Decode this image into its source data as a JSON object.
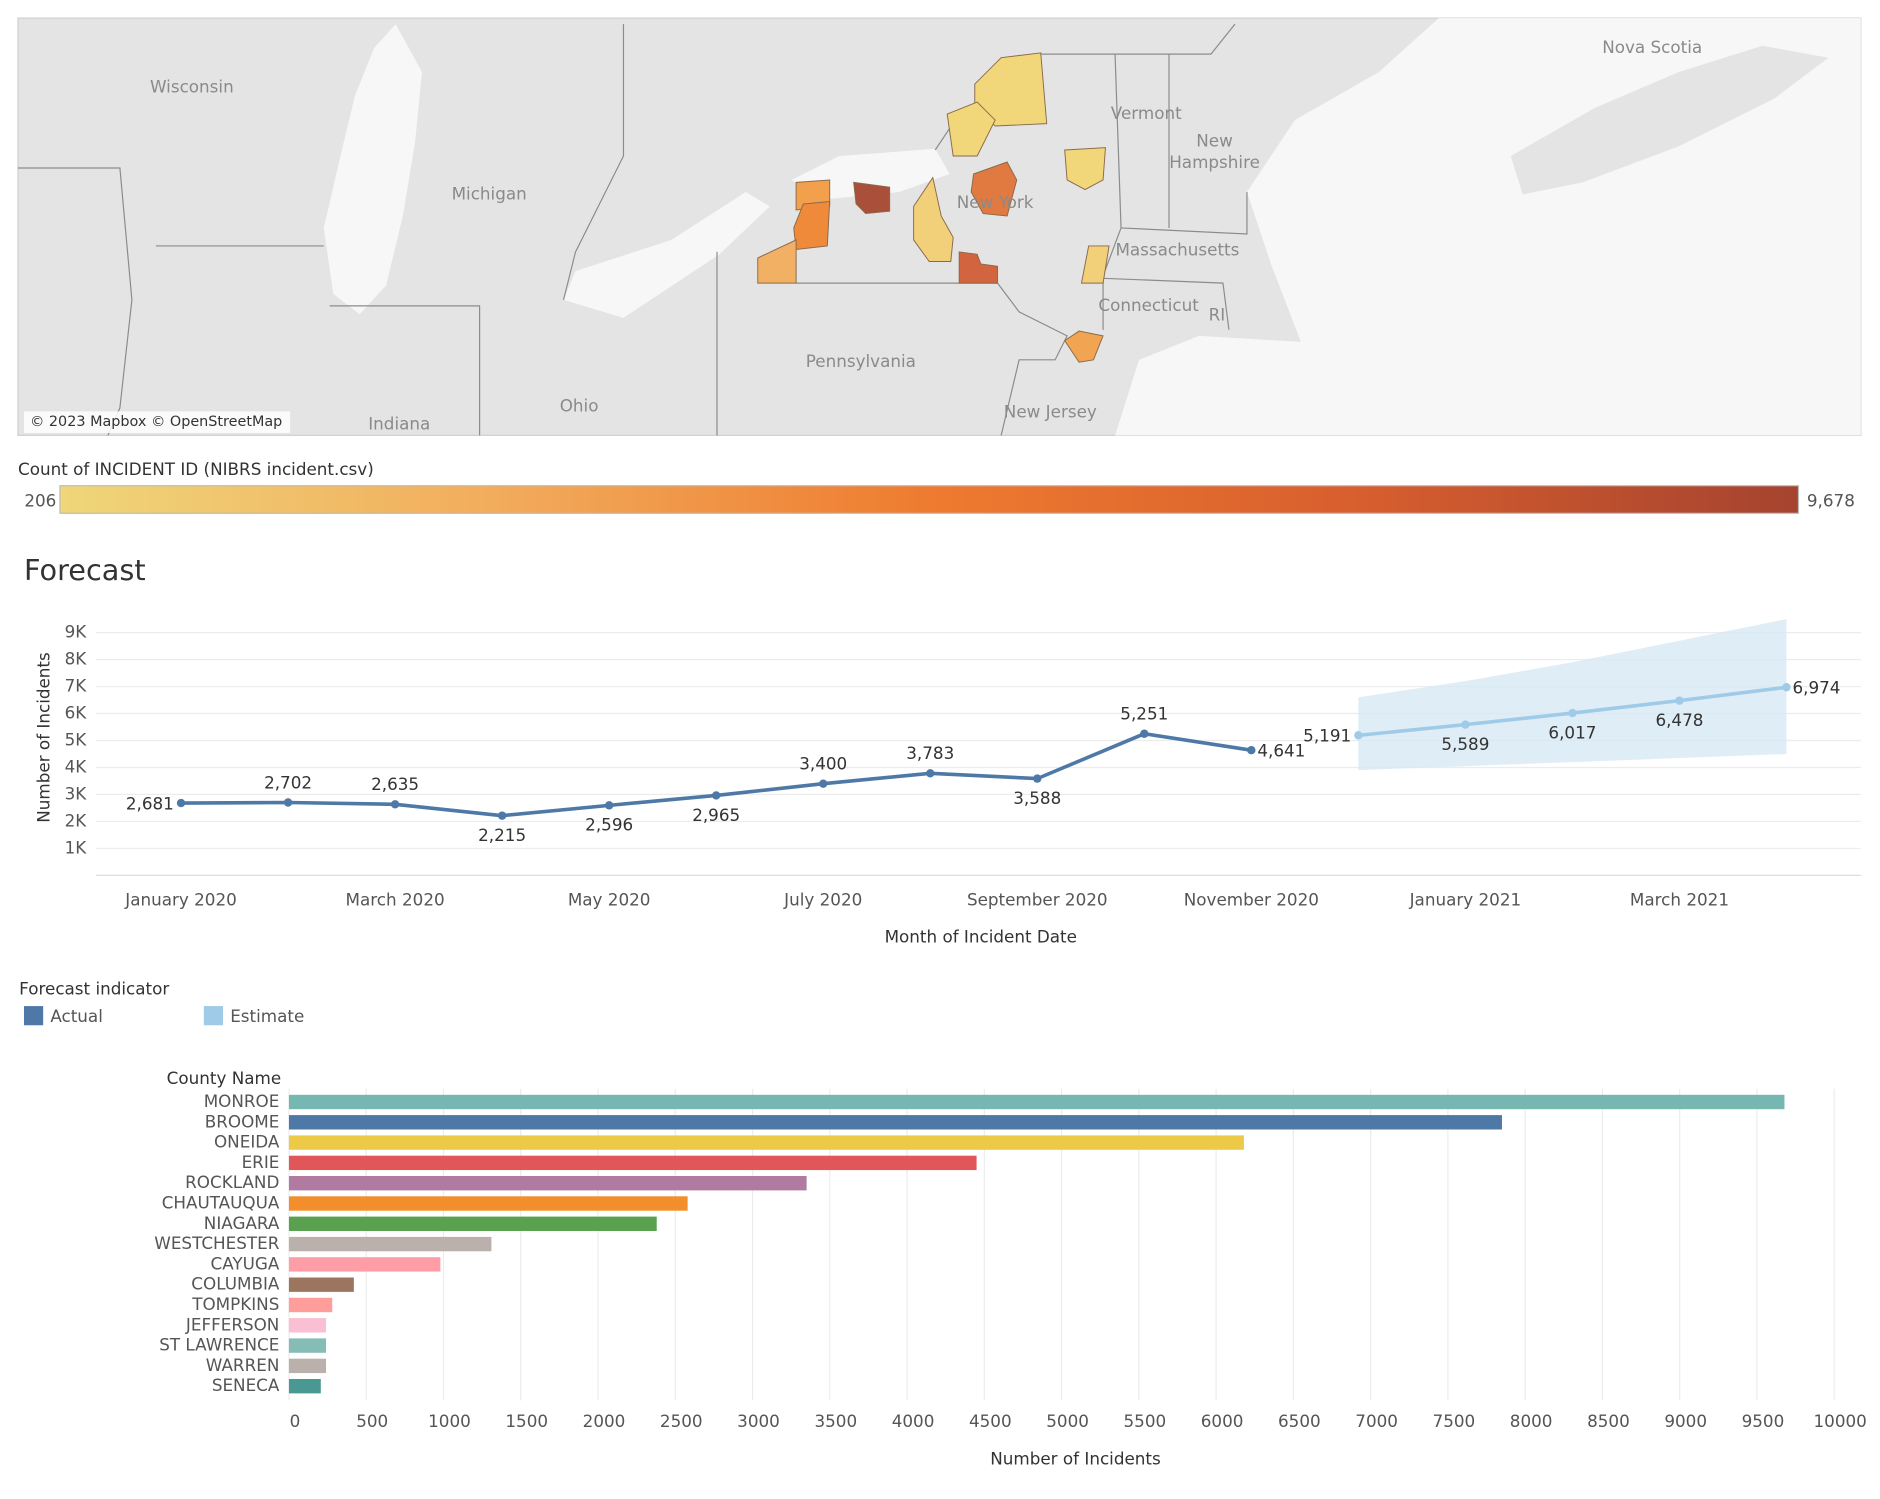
{
  "map": {
    "labels": [
      "Wisconsin",
      "Michigan",
      "Vermont",
      "New",
      "Hampshire",
      "New York",
      "Massachusetts",
      "Connecticut",
      "RI",
      "Pennsylvania",
      "Ohio",
      "Indiana",
      "New Jersey",
      "Nova Scotia"
    ],
    "attribution": "© 2023 Mapbox © OpenStreetMap"
  },
  "color_legend": {
    "title": "Count of INCIDENT ID (NIBRS incident.csv)",
    "min": 206,
    "max": {
      "value": 9678,
      "label": "9,678"
    },
    "colors": [
      "#efd679",
      "#f2ac5c",
      "#ee7b2f",
      "#d75e2e",
      "#a5432f"
    ]
  },
  "chart_data": [
    {
      "type": "line",
      "title": "Forecast",
      "y_label": "Number of Incidents",
      "x_label": "Month of Incident Date",
      "legend_title": "Forecast indicator",
      "categories": [
        "January 2020",
        null,
        "March 2020",
        null,
        "May 2020",
        null,
        "July 2020",
        null,
        "September 2020",
        null,
        "November 2020",
        null,
        "January 2021",
        null,
        "March 2021",
        null
      ],
      "series": [
        {
          "name": "Actual",
          "color": "#4e79a7",
          "values": [
            2681,
            2702,
            2635,
            2215,
            2596,
            2965,
            3400,
            3783,
            3588,
            5251,
            4641,
            null,
            null,
            null,
            null,
            null
          ],
          "value_labels": [
            "2,681",
            "2,702",
            "2,635",
            "2,215",
            "2,596",
            "2,965",
            "3,400",
            "3,783",
            "3,588",
            "5,251",
            "4,641",
            null,
            null,
            null,
            null,
            null
          ]
        },
        {
          "name": "Estimate",
          "color": "#a0cbe8",
          "values": [
            null,
            null,
            null,
            null,
            null,
            null,
            null,
            null,
            null,
            null,
            null,
            5191,
            5589,
            6017,
            6478,
            6974
          ],
          "value_labels": [
            null,
            null,
            null,
            null,
            null,
            null,
            null,
            null,
            null,
            null,
            null,
            "5,191",
            "5,589",
            "6,017",
            "6,478",
            "6,974"
          ]
        }
      ],
      "band": {
        "color": "#d7e8f5",
        "upper": [
          null,
          null,
          null,
          null,
          null,
          null,
          null,
          null,
          null,
          null,
          null,
          6600,
          7200,
          7900,
          8700,
          9500
        ],
        "lower": [
          null,
          null,
          null,
          null,
          null,
          null,
          null,
          null,
          null,
          null,
          null,
          3900,
          4050,
          4200,
          4350,
          4500
        ]
      },
      "ylim": [
        0,
        10000
      ],
      "yticks": [
        {
          "value": 1000,
          "label": "1K"
        },
        {
          "value": 2000,
          "label": "2K"
        },
        {
          "value": 3000,
          "label": "3K"
        },
        {
          "value": 4000,
          "label": "4K"
        },
        {
          "value": 5000,
          "label": "5K"
        },
        {
          "value": 6000,
          "label": "6K"
        },
        {
          "value": 7000,
          "label": "7K"
        },
        {
          "value": 8000,
          "label": "8K"
        },
        {
          "value": 9000,
          "label": "9K"
        }
      ],
      "grid": true
    },
    {
      "type": "hbar",
      "y_label": "County Name",
      "x_label": "Number of Incidents",
      "categories": [
        "MONROE",
        "BROOME",
        "ONEIDA",
        "ERIE",
        "ROCKLAND",
        "CHAUTAUQUA",
        "NIAGARA",
        "WESTCHESTER",
        "CAYUGA",
        "COLUMBIA",
        "TOMPKINS",
        "JEFFERSON",
        "ST LAWRENCE",
        "WARREN",
        "SENECA"
      ],
      "values": [
        9678,
        7850,
        6180,
        4450,
        3350,
        2580,
        2380,
        1310,
        980,
        420,
        280,
        240,
        240,
        240,
        206
      ],
      "colors": [
        "#76b7b2",
        "#4e79a7",
        "#edc948",
        "#e15759",
        "#b07aa1",
        "#f28e2b",
        "#59a14f",
        "#bab0ac",
        "#ff9da7",
        "#9c755f",
        "#ff9d9a",
        "#fabfd2",
        "#86bcb6",
        "#bab0ac",
        "#499894"
      ],
      "xlim": [
        0,
        10180
      ],
      "xticks": [
        0,
        500,
        1000,
        1500,
        2000,
        2500,
        3000,
        3500,
        4000,
        4500,
        5000,
        5500,
        6000,
        6500,
        7000,
        7500,
        8000,
        8500,
        9000,
        9500,
        10000
      ],
      "grid": true
    }
  ]
}
